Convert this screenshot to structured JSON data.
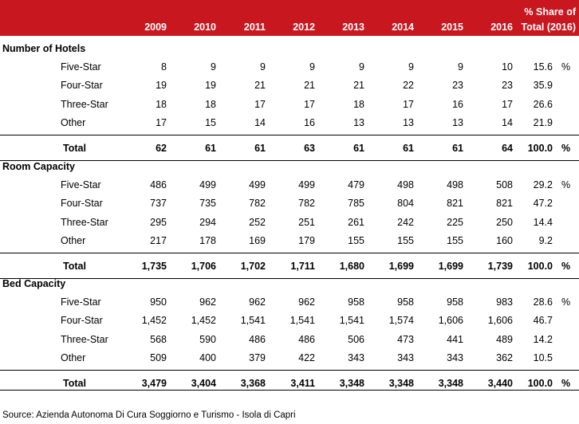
{
  "header": {
    "years": [
      "2009",
      "2010",
      "2011",
      "2012",
      "2013",
      "2014",
      "2015",
      "2016"
    ],
    "share_line1": "% Share of",
    "share_line2": "Total (2016)"
  },
  "sections": [
    {
      "title": "Number of Hotels",
      "rows": [
        {
          "label": "Five-Star",
          "values": [
            "8",
            "9",
            "9",
            "9",
            "9",
            "9",
            "9",
            "10"
          ],
          "share": "15.6",
          "pct": "%"
        },
        {
          "label": "Four-Star",
          "values": [
            "19",
            "19",
            "21",
            "21",
            "21",
            "22",
            "23",
            "23"
          ],
          "share": "35.9",
          "pct": ""
        },
        {
          "label": "Three-Star",
          "values": [
            "18",
            "18",
            "17",
            "17",
            "18",
            "17",
            "16",
            "17"
          ],
          "share": "26.6",
          "pct": ""
        },
        {
          "label": "Other",
          "values": [
            "17",
            "15",
            "14",
            "16",
            "13",
            "13",
            "13",
            "14"
          ],
          "share": "21.9",
          "pct": ""
        }
      ],
      "total": {
        "label": "Total",
        "values": [
          "62",
          "61",
          "61",
          "63",
          "61",
          "61",
          "61",
          "64"
        ],
        "share": "100.0",
        "pct": "%"
      }
    },
    {
      "title": "Room Capacity",
      "rows": [
        {
          "label": "Five-Star",
          "values": [
            "486",
            "499",
            "499",
            "499",
            "479",
            "498",
            "498",
            "508"
          ],
          "share": "29.2",
          "pct": "%"
        },
        {
          "label": "Four-Star",
          "values": [
            "737",
            "735",
            "782",
            "782",
            "785",
            "804",
            "821",
            "821"
          ],
          "share": "47.2",
          "pct": ""
        },
        {
          "label": "Three-Star",
          "values": [
            "295",
            "294",
            "252",
            "251",
            "261",
            "242",
            "225",
            "250"
          ],
          "share": "14.4",
          "pct": ""
        },
        {
          "label": "Other",
          "values": [
            "217",
            "178",
            "169",
            "179",
            "155",
            "155",
            "155",
            "160"
          ],
          "share": "9.2",
          "pct": ""
        }
      ],
      "total": {
        "label": "Total",
        "values": [
          "1,735",
          "1,706",
          "1,702",
          "1,711",
          "1,680",
          "1,699",
          "1,699",
          "1,739"
        ],
        "share": "100.0",
        "pct": "%"
      }
    },
    {
      "title": "Bed Capacity",
      "rows": [
        {
          "label": "Five-Star",
          "values": [
            "950",
            "962",
            "962",
            "962",
            "958",
            "958",
            "958",
            "983"
          ],
          "share": "28.6",
          "pct": "%"
        },
        {
          "label": "Four-Star",
          "values": [
            "1,452",
            "1,452",
            "1,541",
            "1,541",
            "1,541",
            "1,574",
            "1,606",
            "1,606"
          ],
          "share": "46.7",
          "pct": ""
        },
        {
          "label": "Three-Star",
          "values": [
            "568",
            "590",
            "486",
            "486",
            "506",
            "473",
            "441",
            "489"
          ],
          "share": "14.2",
          "pct": ""
        },
        {
          "label": "Other",
          "values": [
            "509",
            "400",
            "379",
            "422",
            "343",
            "343",
            "343",
            "362"
          ],
          "share": "10.5",
          "pct": ""
        }
      ],
      "total": {
        "label": "Total",
        "values": [
          "3,479",
          "3,404",
          "3,368",
          "3,411",
          "3,348",
          "3,348",
          "3,348",
          "3,440"
        ],
        "share": "100.0",
        "pct": "%"
      }
    }
  ],
  "source": "Source: Azienda Autonoma Di Cura Soggiorno e Turismo - Isola di Capri"
}
